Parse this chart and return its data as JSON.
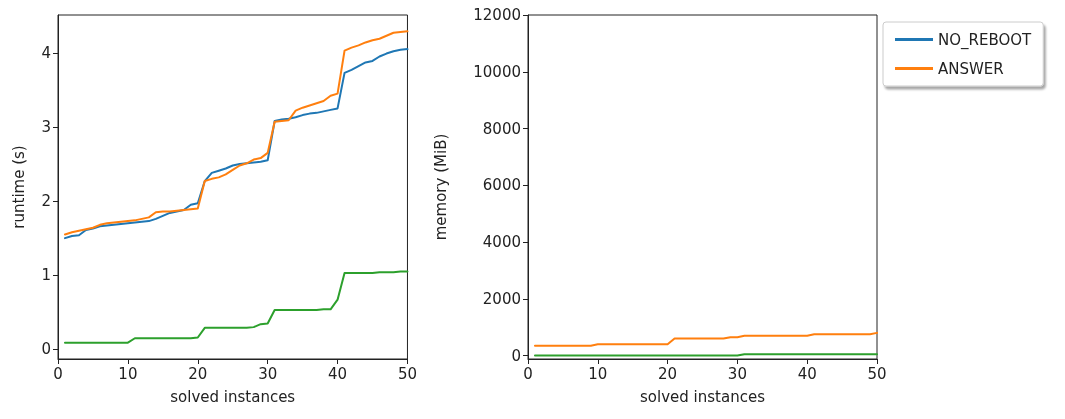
{
  "chart_data": [
    {
      "type": "line",
      "xlabel": "solved instances",
      "ylabel": "runtime (s)",
      "xlim": [
        0,
        50
      ],
      "xticks": [
        0,
        10,
        20,
        30,
        40,
        50
      ],
      "ylim": [
        -0.13,
        4.51
      ],
      "yticks": [
        0,
        1,
        2,
        3,
        4
      ],
      "grid": false,
      "legend": false,
      "marker": "none",
      "x": [
        1,
        2,
        3,
        4,
        5,
        6,
        7,
        8,
        9,
        10,
        11,
        12,
        13,
        14,
        15,
        16,
        17,
        18,
        19,
        20,
        21,
        22,
        23,
        24,
        25,
        26,
        27,
        28,
        29,
        30,
        31,
        32,
        33,
        34,
        35,
        36,
        37,
        38,
        39,
        40,
        41,
        42,
        43,
        44,
        45,
        46,
        47,
        48,
        49,
        50
      ],
      "series": [
        {
          "color": "#1f77b4",
          "values": [
            1.5,
            1.53,
            1.54,
            1.61,
            1.63,
            1.66,
            1.67,
            1.68,
            1.69,
            1.7,
            1.71,
            1.72,
            1.73,
            1.76,
            1.8,
            1.84,
            1.86,
            1.88,
            1.95,
            1.97,
            2.27,
            2.38,
            2.41,
            2.44,
            2.48,
            2.5,
            2.51,
            2.52,
            2.53,
            2.55,
            3.08,
            3.1,
            3.11,
            3.13,
            3.16,
            3.18,
            3.19,
            3.21,
            3.23,
            3.25,
            3.73,
            3.77,
            3.82,
            3.87,
            3.89,
            3.95,
            3.99,
            4.02,
            4.04,
            4.05
          ]
        },
        {
          "color": "#ff7f0e",
          "values": [
            1.55,
            1.58,
            1.6,
            1.62,
            1.64,
            1.68,
            1.7,
            1.71,
            1.72,
            1.73,
            1.74,
            1.76,
            1.78,
            1.85,
            1.86,
            1.86,
            1.87,
            1.88,
            1.89,
            1.9,
            2.27,
            2.3,
            2.32,
            2.36,
            2.42,
            2.48,
            2.51,
            2.56,
            2.58,
            2.65,
            3.07,
            3.08,
            3.09,
            3.22,
            3.26,
            3.29,
            3.32,
            3.35,
            3.42,
            3.45,
            4.03,
            4.07,
            4.1,
            4.14,
            4.17,
            4.19,
            4.23,
            4.27,
            4.28,
            4.29
          ]
        },
        {
          "color": "#2ca02c",
          "values": [
            0.09,
            0.09,
            0.09,
            0.09,
            0.09,
            0.09,
            0.09,
            0.09,
            0.09,
            0.09,
            0.15,
            0.15,
            0.15,
            0.15,
            0.15,
            0.15,
            0.15,
            0.15,
            0.15,
            0.16,
            0.29,
            0.29,
            0.29,
            0.29,
            0.29,
            0.29,
            0.29,
            0.3,
            0.34,
            0.35,
            0.53,
            0.53,
            0.53,
            0.53,
            0.53,
            0.53,
            0.53,
            0.54,
            0.54,
            0.67,
            1.03,
            1.03,
            1.03,
            1.03,
            1.03,
            1.04,
            1.04,
            1.04,
            1.05,
            1.05
          ]
        }
      ]
    },
    {
      "type": "line",
      "xlabel": "solved instances",
      "ylabel": "memory (MiB)",
      "xlim": [
        0,
        50
      ],
      "xticks": [
        0,
        10,
        20,
        30,
        40,
        50
      ],
      "ylim": [
        -120,
        12000
      ],
      "yticks": [
        0,
        2000,
        4000,
        6000,
        8000,
        10000,
        12000
      ],
      "grid": false,
      "legend": "right",
      "marker": "none",
      "x": [
        1,
        2,
        3,
        4,
        5,
        6,
        7,
        8,
        9,
        10,
        11,
        12,
        13,
        14,
        15,
        16,
        17,
        18,
        19,
        20,
        21,
        22,
        23,
        24,
        25,
        26,
        27,
        28,
        29,
        30,
        31,
        32,
        33,
        34,
        35,
        36,
        37,
        38,
        39,
        40,
        41,
        42,
        43,
        44,
        45,
        46,
        47,
        48,
        49,
        50
      ],
      "series": [
        {
          "name": "NO_REBOOT",
          "color": "#1f77b4",
          "values": [
            null,
            null,
            null,
            null,
            null,
            null,
            null,
            null,
            null,
            null,
            null,
            null,
            null,
            null,
            null,
            null,
            null,
            null,
            null,
            null,
            null,
            null,
            null,
            null,
            null,
            null,
            null,
            null,
            null,
            null,
            null,
            null,
            null,
            null,
            null,
            null,
            null,
            null,
            null,
            null,
            null,
            null,
            null,
            null,
            null,
            null,
            null,
            null,
            null,
            null
          ]
        },
        {
          "name": "ANSWER",
          "color": "#ff7f0e",
          "values": [
            350,
            350,
            350,
            350,
            350,
            350,
            350,
            350,
            350,
            400,
            400,
            400,
            400,
            400,
            400,
            400,
            400,
            400,
            400,
            400,
            600,
            600,
            600,
            600,
            600,
            600,
            600,
            600,
            650,
            650,
            700,
            700,
            700,
            700,
            700,
            700,
            700,
            700,
            700,
            700,
            750,
            750,
            750,
            750,
            750,
            750,
            750,
            750,
            750,
            800
          ]
        },
        {
          "color": "#2ca02c",
          "values": [
            0,
            0,
            0,
            0,
            0,
            0,
            0,
            0,
            0,
            0,
            0,
            0,
            0,
            0,
            0,
            0,
            0,
            0,
            0,
            0,
            0,
            0,
            0,
            0,
            0,
            0,
            0,
            0,
            0,
            0,
            50,
            50,
            50,
            50,
            50,
            50,
            50,
            50,
            50,
            50,
            50,
            50,
            50,
            50,
            50,
            50,
            50,
            50,
            50,
            50
          ]
        }
      ]
    }
  ]
}
